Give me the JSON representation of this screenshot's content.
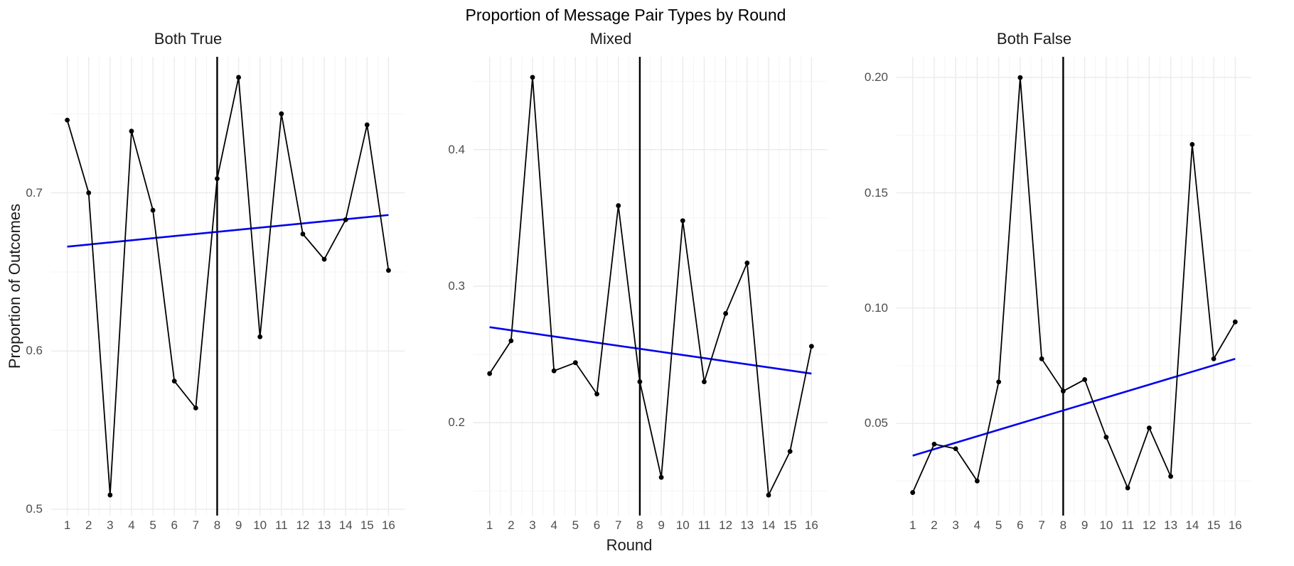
{
  "figure": {
    "title": "Proportion of Message Pair Types by Round",
    "x_axis_title": "Round",
    "y_axis_title": "Proportion of Outcomes"
  },
  "colors": {
    "series": "#000000",
    "point": "#000000",
    "trend": "#0000EE",
    "event_line": "#000000",
    "grid_major": "#EBEBEB",
    "grid_minor": "#F4F4F4",
    "tick_text": "#4D4D4D",
    "title_text": "#1A1A1A",
    "background": "#FFFFFF"
  },
  "chart_data": [
    {
      "type": "line",
      "title": "Both True",
      "xlabel": "Round",
      "x": [
        1,
        2,
        3,
        4,
        5,
        6,
        7,
        8,
        9,
        10,
        11,
        12,
        13,
        14,
        15,
        16
      ],
      "values": [
        0.746,
        0.7,
        0.509,
        0.739,
        0.689,
        0.581,
        0.564,
        0.709,
        0.773,
        0.609,
        0.75,
        0.674,
        0.658,
        0.683,
        0.743,
        0.651
      ],
      "x_tick_labels": [
        "1",
        "2",
        "3",
        "4",
        "5",
        "6",
        "7",
        "8",
        "9",
        "10",
        "11",
        "12",
        "13",
        "14",
        "15",
        "16"
      ],
      "y_ticks": [
        {
          "value": 0.5,
          "label": "0.5"
        },
        {
          "value": 0.6,
          "label": "0.6"
        },
        {
          "value": 0.7,
          "label": "0.7"
        }
      ],
      "y_minor_ticks": [
        0.55,
        0.65,
        0.75
      ],
      "xlim": [
        0.25,
        16.75
      ],
      "ylim": [
        0.496,
        0.786
      ],
      "event_line_x": 8,
      "trend_line": {
        "x_from": 1,
        "x_to": 16,
        "y_from": 0.666,
        "y_to": 0.686
      },
      "grid": true,
      "legend": "none"
    },
    {
      "type": "line",
      "title": "Mixed",
      "xlabel": "Round",
      "x": [
        1,
        2,
        3,
        4,
        5,
        6,
        7,
        8,
        9,
        10,
        11,
        12,
        13,
        14,
        15,
        16
      ],
      "values": [
        0.236,
        0.26,
        0.453,
        0.238,
        0.244,
        0.221,
        0.359,
        0.23,
        0.16,
        0.348,
        0.23,
        0.28,
        0.317,
        0.147,
        0.179,
        0.256
      ],
      "x_tick_labels": [
        "1",
        "2",
        "3",
        "4",
        "5",
        "6",
        "7",
        "8",
        "9",
        "10",
        "11",
        "12",
        "13",
        "14",
        "15",
        "16"
      ],
      "y_ticks": [
        {
          "value": 0.2,
          "label": "0.2"
        },
        {
          "value": 0.3,
          "label": "0.3"
        },
        {
          "value": 0.4,
          "label": "0.4"
        }
      ],
      "y_minor_ticks": [
        0.15,
        0.25,
        0.35,
        0.45
      ],
      "xlim": [
        0.25,
        16.75
      ],
      "ylim": [
        0.132,
        0.468
      ],
      "event_line_x": 8,
      "trend_line": {
        "x_from": 1,
        "x_to": 16,
        "y_from": 0.27,
        "y_to": 0.236
      },
      "grid": true,
      "legend": "none"
    },
    {
      "type": "line",
      "title": "Both False",
      "xlabel": "Round",
      "x": [
        1,
        2,
        3,
        4,
        5,
        6,
        7,
        8,
        9,
        10,
        11,
        12,
        13,
        14,
        15,
        16
      ],
      "values": [
        0.02,
        0.041,
        0.039,
        0.025,
        0.068,
        0.2,
        0.078,
        0.064,
        0.069,
        0.044,
        0.022,
        0.048,
        0.027,
        0.171,
        0.078,
        0.094
      ],
      "x_tick_labels": [
        "1",
        "2",
        "3",
        "4",
        "5",
        "6",
        "7",
        "8",
        "9",
        "10",
        "11",
        "12",
        "13",
        "14",
        "15",
        "16"
      ],
      "y_ticks": [
        {
          "value": 0.05,
          "label": "0.05"
        },
        {
          "value": 0.1,
          "label": "0.10"
        },
        {
          "value": 0.15,
          "label": "0.15"
        },
        {
          "value": 0.2,
          "label": "0.20"
        }
      ],
      "y_minor_ticks": [
        0.025,
        0.075,
        0.125,
        0.175
      ],
      "xlim": [
        0.25,
        16.75
      ],
      "ylim": [
        0.01,
        0.209
      ],
      "event_line_x": 8,
      "trend_line": {
        "x_from": 1,
        "x_to": 16,
        "y_from": 0.036,
        "y_to": 0.078
      },
      "grid": true,
      "legend": "none"
    }
  ]
}
